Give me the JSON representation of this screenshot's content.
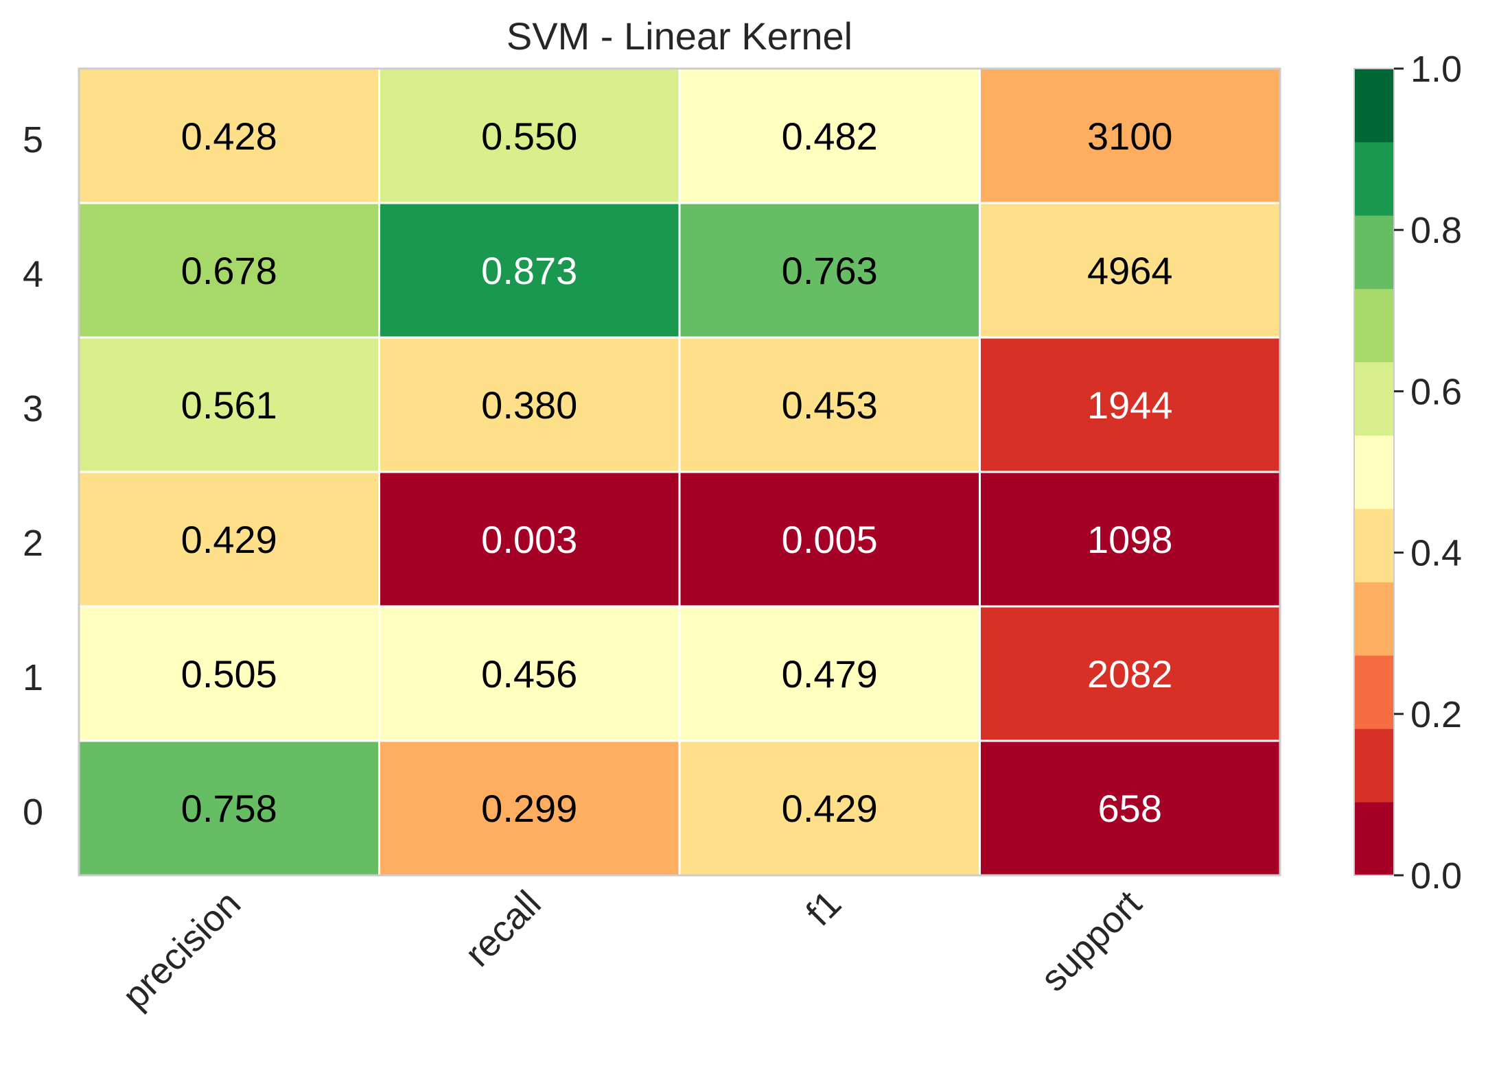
{
  "chart_data": {
    "type": "heatmap",
    "title": "SVM - Linear Kernel",
    "xlabel": "",
    "ylabel": "",
    "columns": [
      "precision",
      "recall",
      "f1",
      "support"
    ],
    "rows": [
      "5",
      "4",
      "3",
      "2",
      "1",
      "0"
    ],
    "values": [
      [
        0.428,
        0.55,
        0.482,
        3100
      ],
      [
        0.678,
        0.873,
        0.763,
        4964
      ],
      [
        0.561,
        0.38,
        0.453,
        1944
      ],
      [
        0.429,
        0.003,
        0.005,
        1098
      ],
      [
        0.505,
        0.456,
        0.479,
        2082
      ],
      [
        0.758,
        0.299,
        0.429,
        658
      ]
    ],
    "labels": [
      [
        "0.428",
        "0.550",
        "0.482",
        "3100"
      ],
      [
        "0.678",
        "0.873",
        "0.763",
        "4964"
      ],
      [
        "0.561",
        "0.380",
        "0.453",
        "1944"
      ],
      [
        "0.429",
        "0.003",
        "0.005",
        "1098"
      ],
      [
        "0.505",
        "0.456",
        "0.479",
        "2082"
      ],
      [
        "0.758",
        "0.299",
        "0.429",
        "658"
      ]
    ],
    "color_fraction": [
      [
        0.428,
        0.55,
        0.482,
        0.283
      ],
      [
        0.678,
        0.873,
        0.763,
        0.373
      ],
      [
        0.561,
        0.38,
        0.453,
        0.13
      ],
      [
        0.429,
        0.003,
        0.005,
        0.045
      ],
      [
        0.505,
        0.456,
        0.479,
        0.138
      ],
      [
        0.758,
        0.299,
        0.429,
        0.0
      ]
    ],
    "colorbar": {
      "range": [
        0.0,
        1.0
      ],
      "ticks": [
        "0.0",
        "0.2",
        "0.4",
        "0.6",
        "0.8",
        "1.0"
      ],
      "palette": [
        "#a50026",
        "#d73027",
        "#f46d43",
        "#fdae61",
        "#fee08b",
        "#ffffbf",
        "#d9ef8b",
        "#a6d96a",
        "#66bd63",
        "#1a9850",
        "#006837"
      ]
    },
    "grid": false,
    "legend": "colorbar-right"
  }
}
